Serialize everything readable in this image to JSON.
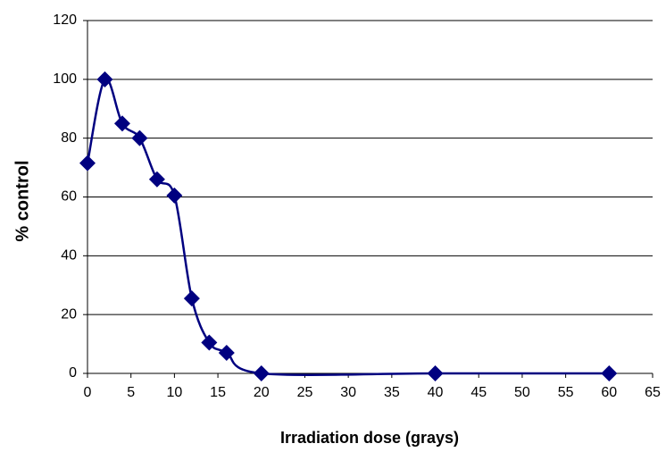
{
  "chart_data": {
    "type": "line",
    "x_label": "Irradiation dose (grays)",
    "y_label": "% control",
    "x": [
      0,
      2,
      4,
      6,
      8,
      10,
      12,
      14,
      16,
      20,
      40,
      60
    ],
    "series": [
      {
        "name": "% control",
        "color": "#000080",
        "values": [
          71.5,
          100,
          85,
          80,
          66,
          60.5,
          25.5,
          10.5,
          7,
          0,
          0,
          0
        ]
      }
    ],
    "xlim": [
      0,
      65
    ],
    "xticks": [
      0,
      5,
      10,
      15,
      20,
      25,
      30,
      35,
      40,
      45,
      50,
      55,
      60,
      65
    ],
    "ylim": [
      0,
      120
    ],
    "yticks": [
      0,
      20,
      40,
      60,
      80,
      100,
      120
    ],
    "grid": true,
    "smooth": true,
    "marker": "diamond"
  }
}
